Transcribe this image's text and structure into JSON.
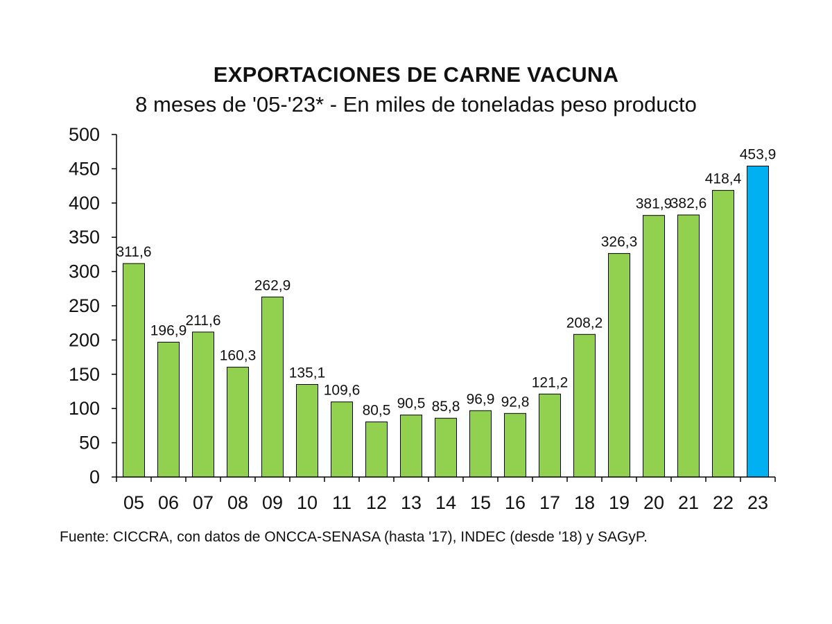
{
  "chart_data": {
    "type": "bar",
    "title": "EXPORTACIONES DE CARNE VACUNA",
    "subtitle": "8 meses de '05-'23* - En miles de toneladas peso producto",
    "categories": [
      "05",
      "06",
      "07",
      "08",
      "09",
      "10",
      "11",
      "12",
      "13",
      "14",
      "15",
      "16",
      "17",
      "18",
      "19",
      "20",
      "21",
      "22",
      "23"
    ],
    "values": [
      311.6,
      196.9,
      211.6,
      160.3,
      262.9,
      135.1,
      109.6,
      80.5,
      90.5,
      85.8,
      96.9,
      92.8,
      121.2,
      208.2,
      326.3,
      381.9,
      382.6,
      418.4,
      453.9
    ],
    "data_labels": [
      "311,6",
      "196,9",
      "211,6",
      "160,3",
      "262,9",
      "135,1",
      "109,6",
      "80,5",
      "90,5",
      "85,8",
      "96,9",
      "92,8",
      "121,2",
      "208,2",
      "326,3",
      "381,9",
      "382,6",
      "418,4",
      "453,9"
    ],
    "y_ticks": [
      0,
      50,
      100,
      150,
      200,
      250,
      300,
      350,
      400,
      450,
      500
    ],
    "ylim": [
      0,
      500
    ],
    "grid": false,
    "legend": "none",
    "colors": {
      "default_bar": "#92D050",
      "highlight_bar": "#00B0F0",
      "bar_outline": "#000000"
    },
    "highlight_index": 18,
    "source": "Fuente: CICCRA, con datos de ONCCA-SENASA (hasta '17), INDEC (desde '18) y SAGyP."
  }
}
